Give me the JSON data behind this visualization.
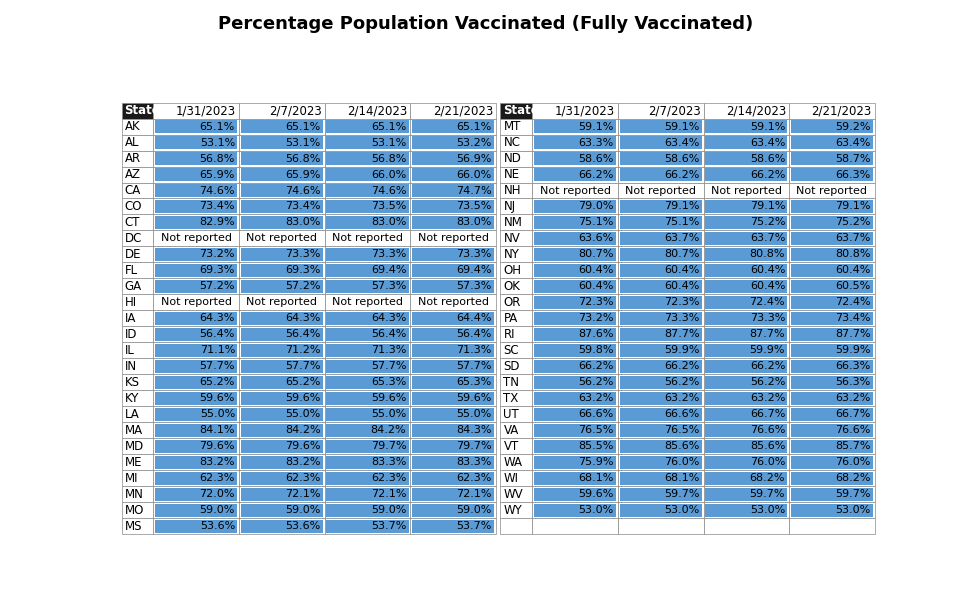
{
  "title": "Percentage Population Vaccinated (Fully Vaccinated)",
  "headers": [
    "State",
    "1/31/2023",
    "2/7/2023",
    "2/14/2023",
    "2/21/2023"
  ],
  "left_data": [
    [
      "AK",
      "65.1%",
      "65.1%",
      "65.1%",
      "65.1%"
    ],
    [
      "AL",
      "53.1%",
      "53.1%",
      "53.1%",
      "53.2%"
    ],
    [
      "AR",
      "56.8%",
      "56.8%",
      "56.8%",
      "56.9%"
    ],
    [
      "AZ",
      "65.9%",
      "65.9%",
      "66.0%",
      "66.0%"
    ],
    [
      "CA",
      "74.6%",
      "74.6%",
      "74.6%",
      "74.7%"
    ],
    [
      "CO",
      "73.4%",
      "73.4%",
      "73.5%",
      "73.5%"
    ],
    [
      "CT",
      "82.9%",
      "83.0%",
      "83.0%",
      "83.0%"
    ],
    [
      "DC",
      "Not reported",
      "Not reported",
      "Not reported",
      "Not reported"
    ],
    [
      "DE",
      "73.2%",
      "73.3%",
      "73.3%",
      "73.3%"
    ],
    [
      "FL",
      "69.3%",
      "69.3%",
      "69.4%",
      "69.4%"
    ],
    [
      "GA",
      "57.2%",
      "57.2%",
      "57.3%",
      "57.3%"
    ],
    [
      "HI",
      "Not reported",
      "Not reported",
      "Not reported",
      "Not reported"
    ],
    [
      "IA",
      "64.3%",
      "64.3%",
      "64.3%",
      "64.4%"
    ],
    [
      "ID",
      "56.4%",
      "56.4%",
      "56.4%",
      "56.4%"
    ],
    [
      "IL",
      "71.1%",
      "71.2%",
      "71.3%",
      "71.3%"
    ],
    [
      "IN",
      "57.7%",
      "57.7%",
      "57.7%",
      "57.7%"
    ],
    [
      "KS",
      "65.2%",
      "65.2%",
      "65.3%",
      "65.3%"
    ],
    [
      "KY",
      "59.6%",
      "59.6%",
      "59.6%",
      "59.6%"
    ],
    [
      "LA",
      "55.0%",
      "55.0%",
      "55.0%",
      "55.0%"
    ],
    [
      "MA",
      "84.1%",
      "84.2%",
      "84.2%",
      "84.3%"
    ],
    [
      "MD",
      "79.6%",
      "79.6%",
      "79.7%",
      "79.7%"
    ],
    [
      "ME",
      "83.2%",
      "83.2%",
      "83.3%",
      "83.3%"
    ],
    [
      "MI",
      "62.3%",
      "62.3%",
      "62.3%",
      "62.3%"
    ],
    [
      "MN",
      "72.0%",
      "72.1%",
      "72.1%",
      "72.1%"
    ],
    [
      "MO",
      "59.0%",
      "59.0%",
      "59.0%",
      "59.0%"
    ],
    [
      "MS",
      "53.6%",
      "53.6%",
      "53.7%",
      "53.7%"
    ]
  ],
  "right_data": [
    [
      "MT",
      "59.1%",
      "59.1%",
      "59.1%",
      "59.2%"
    ],
    [
      "NC",
      "63.3%",
      "63.4%",
      "63.4%",
      "63.4%"
    ],
    [
      "ND",
      "58.6%",
      "58.6%",
      "58.6%",
      "58.7%"
    ],
    [
      "NE",
      "66.2%",
      "66.2%",
      "66.2%",
      "66.3%"
    ],
    [
      "NH",
      "Not reported",
      "Not reported",
      "Not reported",
      "Not reported"
    ],
    [
      "NJ",
      "79.0%",
      "79.1%",
      "79.1%",
      "79.1%"
    ],
    [
      "NM",
      "75.1%",
      "75.1%",
      "75.2%",
      "75.2%"
    ],
    [
      "NV",
      "63.6%",
      "63.7%",
      "63.7%",
      "63.7%"
    ],
    [
      "NY",
      "80.7%",
      "80.7%",
      "80.8%",
      "80.8%"
    ],
    [
      "OH",
      "60.4%",
      "60.4%",
      "60.4%",
      "60.4%"
    ],
    [
      "OK",
      "60.4%",
      "60.4%",
      "60.4%",
      "60.5%"
    ],
    [
      "OR",
      "72.3%",
      "72.3%",
      "72.4%",
      "72.4%"
    ],
    [
      "PA",
      "73.2%",
      "73.3%",
      "73.3%",
      "73.4%"
    ],
    [
      "RI",
      "87.6%",
      "87.7%",
      "87.7%",
      "87.7%"
    ],
    [
      "SC",
      "59.8%",
      "59.9%",
      "59.9%",
      "59.9%"
    ],
    [
      "SD",
      "66.2%",
      "66.2%",
      "66.2%",
      "66.3%"
    ],
    [
      "TN",
      "56.2%",
      "56.2%",
      "56.2%",
      "56.3%"
    ],
    [
      "TX",
      "63.2%",
      "63.2%",
      "63.2%",
      "63.2%"
    ],
    [
      "UT",
      "66.6%",
      "66.6%",
      "66.7%",
      "66.7%"
    ],
    [
      "VA",
      "76.5%",
      "76.5%",
      "76.6%",
      "76.6%"
    ],
    [
      "VT",
      "85.5%",
      "85.6%",
      "85.6%",
      "85.7%"
    ],
    [
      "WA",
      "75.9%",
      "76.0%",
      "76.0%",
      "76.0%"
    ],
    [
      "WI",
      "68.1%",
      "68.1%",
      "68.2%",
      "68.2%"
    ],
    [
      "WV",
      "59.6%",
      "59.7%",
      "59.7%",
      "59.7%"
    ],
    [
      "WY",
      "53.0%",
      "53.0%",
      "53.0%",
      "53.0%"
    ],
    [
      "",
      "",
      "",
      "",
      ""
    ]
  ],
  "header_state_bg": "#1a1a1a",
  "header_state_fg": "#ffffff",
  "header_date_bg": "#ffffff",
  "header_date_fg": "#000000",
  "state_col_bg": "#ffffff",
  "state_col_fg": "#000000",
  "data_cell_bg": "#5b9bd5",
  "data_cell_fg": "#000000",
  "not_reported_bg": "#ffffff",
  "not_reported_fg": "#000000",
  "row_bg": "#ffffff",
  "title_fontsize": 13,
  "cell_fontsize": 8.0,
  "header_fontsize": 8.5,
  "state_fontsize": 8.5
}
